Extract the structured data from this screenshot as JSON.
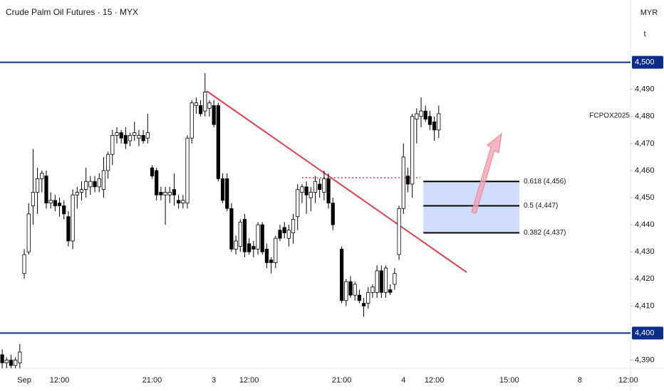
{
  "chart_data": {
    "type": "candlestick",
    "title": "Crude Palm Oil Futures · 15 · MYX",
    "currency": "MYR",
    "unit_button": "t",
    "symbol_label": "FCPOX2025",
    "categories": [
      null,
      null,
      null,
      null,
      null,
      "Sep",
      null,
      null,
      null,
      null,
      null,
      null,
      null,
      "12:00",
      null,
      null,
      null,
      null,
      null,
      null,
      null,
      null,
      null,
      null,
      null,
      null,
      null,
      null,
      null,
      null,
      null,
      null,
      null,
      null,
      "21:00",
      null,
      null,
      null,
      null,
      null,
      null,
      null,
      null,
      null,
      null,
      null,
      null,
      null,
      "3",
      null,
      null,
      null,
      null,
      null,
      null,
      null,
      "12:00",
      null,
      null,
      null,
      null,
      null,
      null,
      null,
      null,
      null,
      null,
      null,
      null,
      null,
      null,
      null,
      null,
      null,
      null,
      null,
      null,
      "21:00",
      null,
      null,
      null,
      null,
      null,
      null,
      null,
      null,
      null,
      null,
      null,
      null,
      null,
      "4",
      null,
      null,
      null,
      null,
      null,
      null,
      "12:00",
      null,
      null,
      null,
      null,
      null,
      null,
      null,
      null,
      null,
      null,
      null,
      null,
      null,
      null,
      null,
      null,
      "15:00",
      null,
      null,
      null,
      null,
      null,
      null,
      null,
      null,
      null,
      null,
      null,
      null,
      null,
      null,
      null,
      "8",
      null,
      null,
      null,
      null,
      null,
      null,
      null,
      null,
      null,
      null,
      "12:00"
    ],
    "open": [
      4392,
      4389,
      4390,
      4388,
      4389,
      4422,
      4430,
      4447,
      4452,
      4457,
      4458,
      4448,
      4449,
      4448,
      4447,
      4443,
      4434,
      4451,
      4452,
      4453,
      4454,
      4456,
      4454,
      4453,
      4460,
      4466,
      4473,
      4474,
      4473,
      4471,
      4473,
      4472,
      4473,
      4472,
      4461,
      4460,
      4452,
      4451,
      4451,
      4453,
      4449,
      4448,
      4448,
      4472,
      4484,
      4484,
      4482,
      4483,
      4484,
      4484,
      4457,
      4457,
      4446,
      4431,
      4432,
      4442,
      4433,
      4432,
      4431,
      4440,
      4431,
      4427,
      4426,
      4438,
      4439,
      4435,
      4437,
      4443,
      4452,
      4454,
      4450,
      4452,
      4455,
      4452,
      4457,
      4448,
      null,
      4431,
      4412,
      4419,
      4414,
      4414,
      4411,
      4411,
      4415,
      4415,
      4423,
      4415,
      4416,
      4418,
      4429,
      4446,
      4458,
      4455,
      4479,
      4480,
      4482,
      4480,
      4478,
      4475,
      null,
      null,
      null,
      null,
      null,
      null,
      null,
      null,
      null,
      null,
      null,
      null,
      null,
      null,
      null,
      null,
      null,
      null,
      null,
      null,
      null,
      null,
      null,
      null,
      null,
      null,
      null,
      null,
      null,
      null,
      null,
      null,
      null,
      null,
      null,
      null,
      null,
      null,
      null,
      null,
      null,
      null,
      null
    ],
    "high": [
      4394,
      4391,
      4392,
      4391,
      4396,
      4431,
      4448,
      4468,
      4461,
      4460,
      4460,
      4452,
      4451,
      4450,
      4449,
      4445,
      4453,
      4454,
      4456,
      4461,
      4458,
      4458,
      4459,
      4465,
      4467,
      4475,
      4476,
      4475,
      4476,
      4474,
      4478,
      4475,
      4475,
      4481,
      4462,
      4461,
      4454,
      4454,
      4454,
      4459,
      4451,
      4451,
      4473,
      4486,
      4487,
      4486,
      4496,
      4486,
      4486,
      4485,
      4459,
      4459,
      4448,
      4436,
      4442,
      4444,
      4435,
      4434,
      4441,
      4441,
      4433,
      4428,
      4436,
      4440,
      4441,
      4440,
      4444,
      4455,
      4455,
      4456,
      4454,
      4458,
      4457,
      4460,
      4459,
      4450,
      null,
      4432,
      4420,
      4421,
      4419,
      4416,
      4413,
      4417,
      4418,
      4425,
      4425,
      4425,
      4418,
      4424,
      4447,
      4470,
      4461,
      4481,
      4483,
      4487,
      4484,
      4482,
      4480,
      4484,
      null,
      null,
      null,
      null,
      null,
      null,
      null,
      null,
      null,
      null,
      null,
      null,
      null,
      null,
      null,
      null,
      null,
      null,
      null,
      null,
      null,
      null,
      null,
      null,
      null,
      null,
      null,
      null,
      null,
      null,
      null,
      null,
      null,
      null,
      null,
      null,
      null,
      null,
      null,
      null,
      null,
      null,
      null
    ],
    "low": [
      4386,
      4386,
      4387,
      4386,
      4386,
      4420,
      4429,
      4440,
      4444,
      4452,
      4446,
      4446,
      4445,
      4443,
      4442,
      4432,
      4431,
      4446,
      4449,
      4450,
      4451,
      4452,
      4452,
      4450,
      4457,
      4462,
      4470,
      4470,
      4468,
      4469,
      4471,
      4469,
      4470,
      4470,
      4457,
      4449,
      4449,
      4440,
      4448,
      4447,
      4446,
      4446,
      4446,
      4470,
      4481,
      4480,
      4480,
      4480,
      4476,
      4456,
      4448,
      4445,
      4430,
      4429,
      4430,
      4428,
      4429,
      4428,
      4429,
      4429,
      4424,
      4422,
      4424,
      4434,
      4435,
      4432,
      4433,
      4438,
      4448,
      4444,
      4445,
      4448,
      4450,
      4449,
      4446,
      4438,
      null,
      4411,
      4410,
      4413,
      4412,
      4411,
      4406,
      4409,
      4413,
      4413,
      4413,
      4413,
      4414,
      4416,
      4427,
      4444,
      4452,
      4450,
      4470,
      4476,
      4478,
      4475,
      4471,
      4472,
      null,
      null,
      null,
      null,
      null,
      null,
      null,
      null,
      null,
      null,
      null,
      null,
      null,
      null,
      null,
      null,
      null,
      null,
      null,
      null,
      null,
      null,
      null,
      null,
      null,
      null,
      null,
      null,
      null,
      null,
      null,
      null,
      null,
      null,
      null,
      null,
      null,
      null,
      null,
      null,
      null,
      null,
      null
    ],
    "close": [
      4389,
      4390,
      4388,
      4390,
      4393,
      4429,
      4444,
      4452,
      4457,
      4459,
      4448,
      4449,
      4447,
      4447,
      4444,
      4434,
      4451,
      4452,
      4453,
      4456,
      4456,
      4454,
      4457,
      4460,
      4466,
      4473,
      4474,
      4472,
      4470,
      4473,
      4474,
      4473,
      4471,
      4474,
      4458,
      4451,
      4451,
      4452,
      4452,
      4451,
      4448,
      4449,
      4472,
      4485,
      4485,
      4481,
      4489,
      4485,
      4477,
      4457,
      4449,
      4446,
      4431,
      4434,
      4441,
      4430,
      4430,
      4431,
      4440,
      4430,
      4426,
      4426,
      4435,
      4435,
      4437,
      4438,
      4442,
      4453,
      4454,
      4451,
      4452,
      4456,
      4453,
      4457,
      4448,
      4440,
      null,
      4412,
      4419,
      4414,
      4418,
      4412,
      4410,
      4415,
      4417,
      4423,
      4415,
      4424,
      4415,
      4422,
      4446,
      4465,
      4455,
      4480,
      4481,
      4482,
      4479,
      4477,
      4475,
      4481,
      null,
      null,
      null,
      null,
      null,
      null,
      null,
      null,
      null,
      null,
      null,
      null,
      null,
      null,
      null,
      null,
      null,
      null,
      null,
      null,
      null,
      null,
      null,
      null,
      null,
      null,
      null,
      null,
      null,
      null,
      null,
      null,
      null,
      null,
      null,
      null,
      null,
      null,
      null,
      null,
      null,
      null,
      null
    ],
    "up_color": "#ffffff",
    "down_color": "#000000",
    "border_color": "#000000",
    "ylim": [
      4387,
      4523
    ],
    "yticks": [
      {
        "value": 4390,
        "label": "4,390"
      },
      {
        "value": 4410,
        "label": "4,410"
      },
      {
        "value": 4420,
        "label": "4,420"
      },
      {
        "value": 4430,
        "label": "4,430"
      },
      {
        "value": 4440,
        "label": "4,440"
      },
      {
        "value": 4450,
        "label": "4,450"
      },
      {
        "value": 4460,
        "label": "4,460"
      },
      {
        "value": 4470,
        "label": "4,470"
      },
      {
        "value": 4480,
        "label": "4,480"
      },
      {
        "value": 4490,
        "label": "4,490"
      }
    ],
    "hlines": [
      {
        "value": 4500,
        "label": "4,500"
      },
      {
        "value": 4400,
        "label": "4,400"
      }
    ],
    "hline_color": "#0d2d8c",
    "fib_levels": [
      {
        "value": 4456,
        "label": "0.618 (4,456)"
      },
      {
        "value": 4447,
        "label": "0.5 (4,447)"
      },
      {
        "value": 4437,
        "label": "0.382 (4,437)"
      }
    ],
    "fib_fill": "#cfdcfb"
  }
}
